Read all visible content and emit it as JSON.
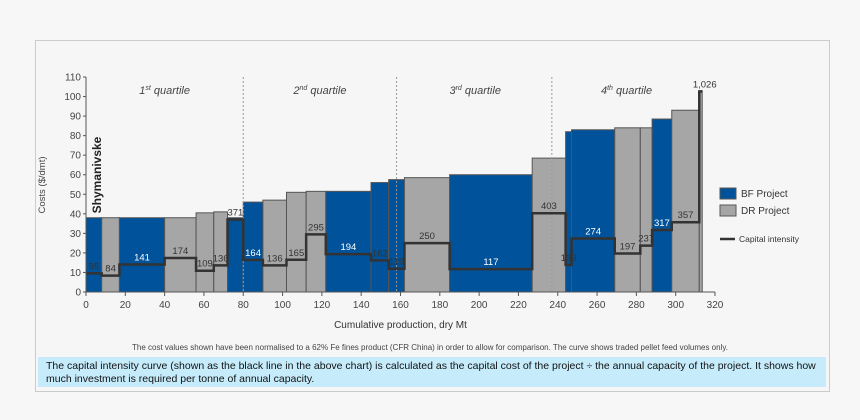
{
  "chart_data": {
    "type": "bar",
    "subtype": "cost-curve (variable width)",
    "xlabel": "Cumulative production, dry Mt",
    "ylabel": "Costs ($/dmt)",
    "xlim": [
      0,
      320
    ],
    "ylim": [
      0,
      110
    ],
    "xticks": [
      0,
      20,
      40,
      60,
      80,
      100,
      120,
      140,
      160,
      180,
      200,
      220,
      240,
      260,
      280,
      300,
      320
    ],
    "yticks": [
      0,
      10,
      20,
      30,
      40,
      50,
      60,
      70,
      80,
      90,
      100,
      110
    ],
    "quartiles": [
      {
        "label": "1st quartile",
        "sup": "st",
        "base": "1",
        "text": " quartile"
      },
      {
        "base": "2",
        "sup": "nd",
        "text": " quartile"
      },
      {
        "base": "3",
        "sup": "rd",
        "text": " quartile"
      },
      {
        "base": "4",
        "sup": "th",
        "text": " quartile"
      }
    ],
    "quartile_boundaries": [
      80,
      158,
      237
    ],
    "annotation": "Shymanivske",
    "legend": {
      "position": "right",
      "items": [
        "BF Project",
        "DR Project",
        "Capital intensity"
      ]
    },
    "colors": {
      "BF": "#00529b",
      "DR": "#a6a6a6",
      "capital": "#333333"
    },
    "bars": [
      {
        "x0": 0,
        "x1": 8,
        "cost": 38,
        "type": "BF",
        "capital": 95
      },
      {
        "x0": 8,
        "x1": 17,
        "cost": 38,
        "type": "DR",
        "capital": 84
      },
      {
        "x0": 17,
        "x1": 40,
        "cost": 38,
        "type": "BF",
        "capital": 141
      },
      {
        "x0": 40,
        "x1": 56,
        "cost": 38,
        "type": "DR",
        "capital": 174
      },
      {
        "x0": 56,
        "x1": 65,
        "cost": 40.5,
        "type": "DR",
        "capital": 109
      },
      {
        "x0": 65,
        "x1": 72,
        "cost": 41,
        "type": "DR",
        "capital": 136
      },
      {
        "x0": 72,
        "x1": 80,
        "cost": 38,
        "type": "BF",
        "capital": 371
      },
      {
        "x0": 80,
        "x1": 90,
        "cost": 46,
        "type": "BF",
        "capital": 164
      },
      {
        "x0": 90,
        "x1": 102,
        "cost": 47,
        "type": "DR",
        "capital": 136
      },
      {
        "x0": 102,
        "x1": 112,
        "cost": 51,
        "type": "DR",
        "capital": 165
      },
      {
        "x0": 112,
        "x1": 122,
        "cost": 51.5,
        "type": "DR",
        "capital": 295
      },
      {
        "x0": 122,
        "x1": 145,
        "cost": 51.5,
        "type": "BF",
        "capital": 194
      },
      {
        "x0": 145,
        "x1": 154,
        "cost": 56,
        "type": "BF",
        "capital": 162
      },
      {
        "x0": 154,
        "x1": 162,
        "cost": 57.5,
        "type": "BF",
        "capital": 119
      },
      {
        "x0": 162,
        "x1": 185,
        "cost": 58.5,
        "type": "DR",
        "capital": 250
      },
      {
        "x0": 185,
        "x1": 227,
        "cost": 60,
        "type": "BF",
        "capital": 117
      },
      {
        "x0": 227,
        "x1": 244,
        "cost": 68.5,
        "type": "DR",
        "capital": 403
      },
      {
        "x0": 244,
        "x1": 247,
        "cost": 82,
        "type": "BF",
        "capital": 139
      },
      {
        "x0": 247,
        "x1": 269,
        "cost": 83,
        "type": "BF",
        "capital": 274
      },
      {
        "x0": 269,
        "x1": 282,
        "cost": 84,
        "type": "DR",
        "capital": 197
      },
      {
        "x0": 282,
        "x1": 288,
        "cost": 84,
        "type": "DR",
        "capital": 237
      },
      {
        "x0": 288,
        "x1": 298,
        "cost": 88.5,
        "type": "BF",
        "capital": 317
      },
      {
        "x0": 298,
        "x1": 312,
        "cost": 93,
        "type": "DR",
        "capital": 357
      },
      {
        "x0": 312,
        "x1": 313.5,
        "cost": 103,
        "type": "DR",
        "capital": 1026,
        "capital_label": "1,026"
      }
    ]
  },
  "note": "The cost values shown have been normalised to a 62% Fe fines product (CFR China) in order to allow for comparison. The curve shows traded pellet feed volumes only.",
  "callout": "The capital intensity curve (shown as the black line in the above chart) is calculated as the capital cost of the project ÷ the annual capacity of the project. It shows how much investment is required per tonne of annual capacity."
}
